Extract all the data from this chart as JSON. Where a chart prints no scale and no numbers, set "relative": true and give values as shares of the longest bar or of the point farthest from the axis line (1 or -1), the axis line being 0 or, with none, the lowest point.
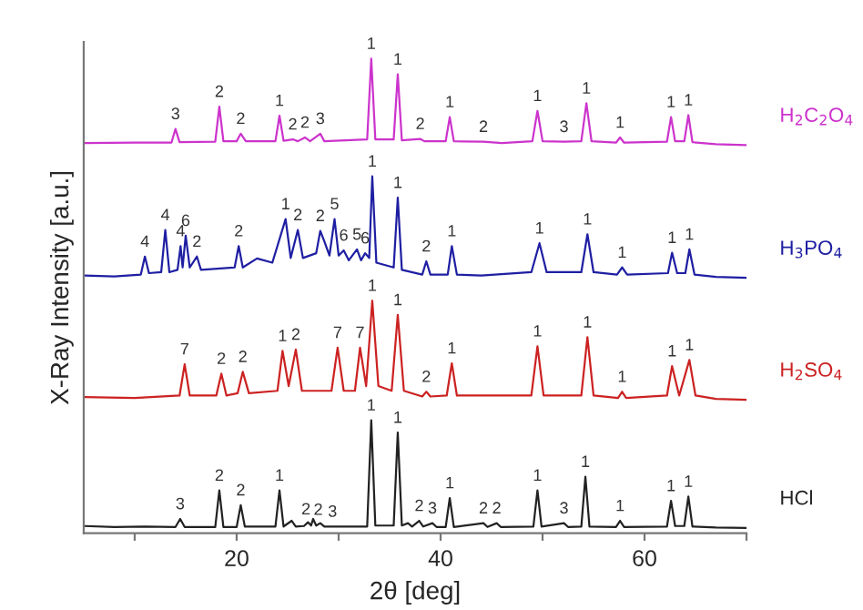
{
  "chart_data": {
    "type": "line",
    "relative": true,
    "xlabel": "2θ [deg]",
    "ylabel": "X-Ray Intensity [a.u.]",
    "xlim": [
      5,
      70
    ],
    "xticks": [
      {
        "value": 10,
        "label": null
      },
      20,
      {
        "value": 30,
        "label": null
      },
      40,
      {
        "value": 50,
        "label": null
      },
      60,
      {
        "value": 70,
        "label": null
      }
    ],
    "series": [
      {
        "name": "H$_{2}$C$_{2}$O$_{4}$",
        "color": "#cc33cc",
        "x": [
          5.1,
          10,
          13.6,
          14.0,
          14.4,
          17.9,
          18.3,
          18.7,
          20.0,
          20.4,
          20.9,
          23.8,
          24.2,
          24.6,
          25.5,
          26.0,
          26.7,
          27.2,
          28.2,
          28.6,
          32.8,
          33.2,
          33.6,
          35.4,
          35.8,
          36.2,
          38.0,
          38.4,
          40.5,
          40.9,
          41.3,
          44.2,
          46,
          49.0,
          49.5,
          50.0,
          52.1,
          53.8,
          54.3,
          54.8,
          57.2,
          57.6,
          58.0,
          62.2,
          62.6,
          63.0,
          63.9,
          64.3,
          64.7,
          67,
          70
        ],
        "values": [
          0.822,
          0.823,
          0.823,
          0.852,
          0.824,
          0.825,
          0.899,
          0.826,
          0.826,
          0.842,
          0.826,
          0.826,
          0.88,
          0.827,
          0.83,
          0.826,
          0.834,
          0.826,
          0.842,
          0.826,
          0.83,
          1.0,
          0.83,
          0.83,
          0.967,
          0.828,
          0.831,
          0.826,
          0.826,
          0.877,
          0.826,
          0.825,
          0.822,
          0.826,
          0.89,
          0.826,
          0.825,
          0.826,
          0.906,
          0.826,
          0.823,
          0.834,
          0.823,
          0.825,
          0.877,
          0.826,
          0.826,
          0.881,
          0.824,
          0.82,
          0.818
        ]
      },
      {
        "name": "H$_{3}$PO$_{4}$",
        "color": "#1f1fa3",
        "x": [
          5.1,
          8,
          10.6,
          11.0,
          11.4,
          12.6,
          13.0,
          13.4,
          14.2,
          14.5,
          14.7,
          15.0,
          15.4,
          16.1,
          16.5,
          19.8,
          20.2,
          20.6,
          22.0,
          23.5,
          24.8,
          25.3,
          26.0,
          26.5,
          27.8,
          28.2,
          28.6,
          29.1,
          29.6,
          30.0,
          30.5,
          31.0,
          31.8,
          32.2,
          32.6,
          33.0,
          33.3,
          33.7,
          35.4,
          35.8,
          36.2,
          38.2,
          38.6,
          39.0,
          40.7,
          41.1,
          41.6,
          44,
          48.9,
          49.7,
          50.4,
          53.8,
          54.4,
          55.0,
          57.3,
          57.8,
          58.3,
          62.3,
          62.7,
          63.2,
          64.0,
          64.4,
          64.9,
          67,
          70
        ],
        "values": [
          0.543,
          0.541,
          0.545,
          0.583,
          0.548,
          0.55,
          0.639,
          0.55,
          0.555,
          0.605,
          0.56,
          0.627,
          0.56,
          0.583,
          0.555,
          0.56,
          0.605,
          0.56,
          0.579,
          0.57,
          0.662,
          0.58,
          0.639,
          0.58,
          0.59,
          0.637,
          0.615,
          0.585,
          0.662,
          0.585,
          0.596,
          0.575,
          0.598,
          0.575,
          0.59,
          0.58,
          0.752,
          0.57,
          0.56,
          0.707,
          0.555,
          0.545,
          0.573,
          0.545,
          0.545,
          0.605,
          0.545,
          0.543,
          0.55,
          0.611,
          0.55,
          0.55,
          0.63,
          0.55,
          0.545,
          0.56,
          0.545,
          0.548,
          0.591,
          0.548,
          0.548,
          0.598,
          0.545,
          0.54,
          0.538
        ]
      },
      {
        "name": "H$_{2}$SO$_{4}$",
        "color": "#cc2222",
        "x": [
          5.1,
          10,
          14.4,
          14.9,
          15.4,
          18.0,
          18.5,
          19.0,
          20.1,
          20.6,
          21.2,
          24.0,
          24.5,
          25.1,
          25.8,
          26.4,
          29.3,
          29.9,
          30.5,
          31.6,
          32.1,
          32.7,
          33.3,
          33.9,
          35.2,
          35.8,
          36.4,
          38.2,
          38.6,
          39.0,
          40.6,
          41.1,
          41.6,
          48.9,
          49.5,
          50.1,
          53.8,
          54.4,
          55.0,
          57.4,
          57.8,
          58.2,
          62.2,
          62.7,
          63.4,
          64.4,
          65.0,
          67,
          70
        ],
        "values": [
          0.287,
          0.285,
          0.29,
          0.356,
          0.29,
          0.29,
          0.336,
          0.29,
          0.295,
          0.34,
          0.295,
          0.3,
          0.384,
          0.31,
          0.387,
          0.3,
          0.3,
          0.391,
          0.3,
          0.3,
          0.391,
          0.31,
          0.49,
          0.31,
          0.3,
          0.46,
          0.3,
          0.288,
          0.298,
          0.288,
          0.29,
          0.358,
          0.29,
          0.29,
          0.394,
          0.29,
          0.29,
          0.413,
          0.29,
          0.285,
          0.298,
          0.285,
          0.29,
          0.352,
          0.29,
          0.365,
          0.29,
          0.283,
          0.281
        ]
      },
      {
        "name": "HCl",
        "color": "#222222",
        "x": [
          5.1,
          8,
          11,
          14.0,
          14.46,
          14.9,
          17.9,
          18.3,
          18.7,
          20.0,
          20.4,
          20.8,
          23.8,
          24.2,
          24.6,
          25.4,
          25.8,
          26.6,
          27.0,
          27.3,
          27.5,
          27.8,
          28.2,
          28.6,
          32.8,
          33.2,
          33.6,
          35.4,
          35.8,
          36.2,
          36.8,
          37.2,
          37.9,
          38.3,
          39.2,
          39.6,
          40.5,
          40.9,
          41.3,
          44.2,
          44.6,
          45.5,
          45.9,
          49.1,
          49.5,
          49.9,
          52.1,
          52.5,
          53.8,
          54.2,
          54.6,
          57.2,
          57.6,
          58.0,
          62.2,
          62.6,
          63.0,
          63.9,
          64.3,
          64.7,
          67,
          70
        ],
        "values": [
          0.015,
          0.013,
          0.014,
          0.013,
          0.03,
          0.013,
          0.013,
          0.09,
          0.013,
          0.013,
          0.059,
          0.014,
          0.014,
          0.09,
          0.014,
          0.026,
          0.014,
          0.015,
          0.023,
          0.016,
          0.03,
          0.016,
          0.021,
          0.014,
          0.014,
          0.238,
          0.016,
          0.016,
          0.212,
          0.016,
          0.021,
          0.014,
          0.026,
          0.014,
          0.021,
          0.013,
          0.013,
          0.074,
          0.013,
          0.021,
          0.013,
          0.021,
          0.013,
          0.014,
          0.09,
          0.014,
          0.021,
          0.013,
          0.014,
          0.119,
          0.014,
          0.013,
          0.026,
          0.013,
          0.014,
          0.068,
          0.015,
          0.015,
          0.077,
          0.014,
          0.012,
          0.011
        ]
      }
    ],
    "annotations": [
      {
        "text": "3",
        "x": 14.0,
        "y": 0.852
      },
      {
        "text": "2",
        "x": 18.3,
        "y": 0.899
      },
      {
        "text": "2",
        "x": 20.4,
        "y": 0.842
      },
      {
        "text": "1",
        "x": 24.2,
        "y": 0.88
      },
      {
        "text": "2",
        "x": 25.5,
        "y": 0.83
      },
      {
        "text": "2",
        "x": 26.7,
        "y": 0.834
      },
      {
        "text": "3",
        "x": 28.2,
        "y": 0.842
      },
      {
        "text": "1",
        "x": 33.2,
        "y": 1.0
      },
      {
        "text": "1",
        "x": 35.8,
        "y": 0.967
      },
      {
        "text": "2",
        "x": 38.0,
        "y": 0.831
      },
      {
        "text": "1",
        "x": 40.9,
        "y": 0.877
      },
      {
        "text": "2",
        "x": 44.2,
        "y": 0.825
      },
      {
        "text": "1",
        "x": 49.5,
        "y": 0.89
      },
      {
        "text": "3",
        "x": 52.1,
        "y": 0.825
      },
      {
        "text": "1",
        "x": 54.3,
        "y": 0.906
      },
      {
        "text": "1",
        "x": 57.6,
        "y": 0.834
      },
      {
        "text": "1",
        "x": 62.6,
        "y": 0.877
      },
      {
        "text": "1",
        "x": 64.3,
        "y": 0.881
      },
      {
        "text": "4",
        "x": 11.0,
        "y": 0.583
      },
      {
        "text": "4",
        "x": 13.0,
        "y": 0.639
      },
      {
        "text": "4",
        "x": 14.5,
        "y": 0.605
      },
      {
        "text": "6",
        "x": 15.0,
        "y": 0.627
      },
      {
        "text": "2",
        "x": 16.1,
        "y": 0.583
      },
      {
        "text": "2",
        "x": 20.2,
        "y": 0.605
      },
      {
        "text": "1",
        "x": 24.8,
        "y": 0.662
      },
      {
        "text": "2",
        "x": 26.0,
        "y": 0.639
      },
      {
        "text": "2",
        "x": 28.2,
        "y": 0.637
      },
      {
        "text": "5",
        "x": 29.6,
        "y": 0.662
      },
      {
        "text": "6",
        "x": 30.5,
        "y": 0.596
      },
      {
        "text": "5",
        "x": 31.8,
        "y": 0.598
      },
      {
        "text": "6",
        "x": 32.6,
        "y": 0.59
      },
      {
        "text": "1",
        "x": 33.3,
        "y": 0.752
      },
      {
        "text": "1",
        "x": 35.8,
        "y": 0.707
      },
      {
        "text": "2",
        "x": 38.6,
        "y": 0.573
      },
      {
        "text": "1",
        "x": 41.1,
        "y": 0.605
      },
      {
        "text": "1",
        "x": 49.7,
        "y": 0.611
      },
      {
        "text": "1",
        "x": 54.4,
        "y": 0.63
      },
      {
        "text": "1",
        "x": 57.8,
        "y": 0.56
      },
      {
        "text": "1",
        "x": 62.7,
        "y": 0.591
      },
      {
        "text": "1",
        "x": 64.4,
        "y": 0.598
      },
      {
        "text": "7",
        "x": 14.9,
        "y": 0.356
      },
      {
        "text": "2",
        "x": 18.5,
        "y": 0.336
      },
      {
        "text": "2",
        "x": 20.6,
        "y": 0.34
      },
      {
        "text": "1",
        "x": 24.5,
        "y": 0.384
      },
      {
        "text": "2",
        "x": 25.8,
        "y": 0.387
      },
      {
        "text": "7",
        "x": 29.9,
        "y": 0.391
      },
      {
        "text": "7",
        "x": 32.1,
        "y": 0.391
      },
      {
        "text": "1",
        "x": 33.3,
        "y": 0.49
      },
      {
        "text": "1",
        "x": 35.8,
        "y": 0.46
      },
      {
        "text": "2",
        "x": 38.6,
        "y": 0.298
      },
      {
        "text": "1",
        "x": 41.1,
        "y": 0.358
      },
      {
        "text": "1",
        "x": 49.5,
        "y": 0.394
      },
      {
        "text": "1",
        "x": 54.4,
        "y": 0.413
      },
      {
        "text": "1",
        "x": 57.8,
        "y": 0.298
      },
      {
        "text": "1",
        "x": 62.7,
        "y": 0.352
      },
      {
        "text": "1",
        "x": 64.4,
        "y": 0.365
      },
      {
        "text": "3",
        "x": 14.46,
        "y": 0.03
      },
      {
        "text": "2",
        "x": 18.3,
        "y": 0.09
      },
      {
        "text": "2",
        "x": 20.4,
        "y": 0.059
      },
      {
        "text": "1",
        "x": 24.2,
        "y": 0.09
      },
      {
        "text": "2",
        "x": 26.8,
        "y": 0.019
      },
      {
        "text": "2",
        "x": 28.0,
        "y": 0.018
      },
      {
        "text": "3",
        "x": 29.4,
        "y": 0.014
      },
      {
        "text": "1",
        "x": 33.2,
        "y": 0.238
      },
      {
        "text": "1",
        "x": 35.8,
        "y": 0.212
      },
      {
        "text": "2",
        "x": 37.9,
        "y": 0.026
      },
      {
        "text": "3",
        "x": 39.2,
        "y": 0.021
      },
      {
        "text": "1",
        "x": 40.9,
        "y": 0.074
      },
      {
        "text": "2",
        "x": 44.2,
        "y": 0.021
      },
      {
        "text": "2",
        "x": 45.5,
        "y": 0.021
      },
      {
        "text": "1",
        "x": 49.5,
        "y": 0.09
      },
      {
        "text": "3",
        "x": 52.1,
        "y": 0.021
      },
      {
        "text": "1",
        "x": 54.2,
        "y": 0.119
      },
      {
        "text": "1",
        "x": 57.6,
        "y": 0.026
      },
      {
        "text": "1",
        "x": 62.6,
        "y": 0.068
      },
      {
        "text": "1",
        "x": 64.3,
        "y": 0.077
      }
    ]
  }
}
